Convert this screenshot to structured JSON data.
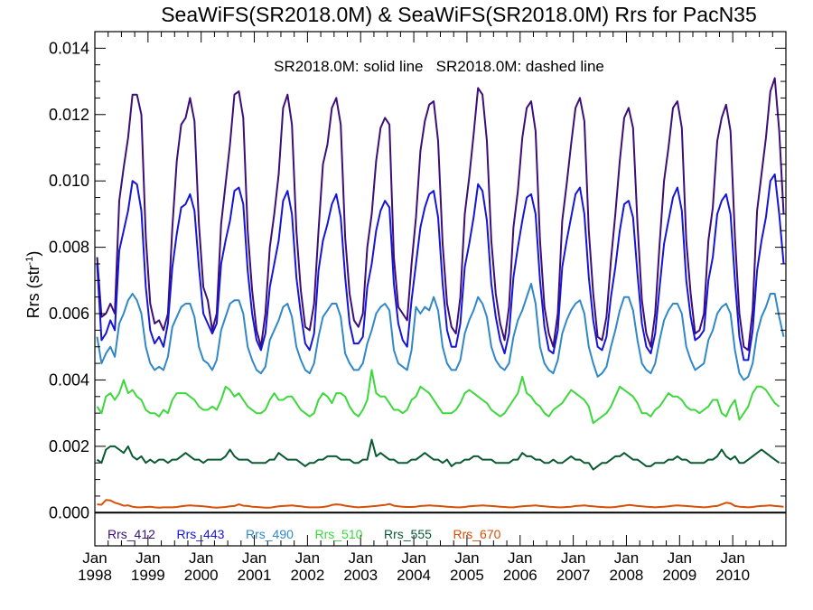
{
  "chart_data": {
    "type": "line",
    "title": "SeaWiFS(SR2018.0M) & SeaWiFS(SR2018.0M)  Rrs for PacN35",
    "annotation": "SR2018.0M: solid line   SR2018.0M: dashed line",
    "ylabel": "Rrs (str",
    "ylabel_sup": "-1",
    "ylabel_end": ")",
    "ylim": [
      -0.001,
      0.0145
    ],
    "xlim": [
      "1998-01",
      "2010-12"
    ],
    "yticks": [
      0.0,
      0.002,
      0.004,
      0.006,
      0.008,
      0.01,
      0.012,
      0.014
    ],
    "ytick_labels": [
      "0.000",
      "0.002",
      "0.004",
      "0.006",
      "0.008",
      "0.010",
      "0.012",
      "0.014"
    ],
    "xtick_month_label": "Jan",
    "xtick_years": [
      "1998",
      "1999",
      "2000",
      "2001",
      "2002",
      "2003",
      "2004",
      "2005",
      "2006",
      "2007",
      "2008",
      "2009",
      "2010"
    ],
    "zero_line": 0.0,
    "legend_position": "bottom-left",
    "series": [
      {
        "name": "Rrs_412",
        "color": "#3c0e78",
        "values": [
          0.0077,
          0.0059,
          0.006,
          0.0063,
          0.006,
          0.0094,
          0.0104,
          0.0113,
          0.0126,
          0.0126,
          0.012,
          0.0083,
          0.0063,
          0.0057,
          0.0058,
          0.0055,
          0.006,
          0.0086,
          0.0106,
          0.0117,
          0.0119,
          0.0125,
          0.0118,
          0.0087,
          0.0068,
          0.0064,
          0.0055,
          0.006,
          0.0087,
          0.0099,
          0.0111,
          0.0126,
          0.0127,
          0.0119,
          0.0085,
          0.0067,
          0.0055,
          0.005,
          0.006,
          0.008,
          0.009,
          0.0102,
          0.0122,
          0.0126,
          0.0117,
          0.0085,
          0.0067,
          0.0056,
          0.0055,
          0.0063,
          0.0085,
          0.0105,
          0.0111,
          0.0122,
          0.0125,
          0.0117,
          0.0083,
          0.0066,
          0.0058,
          0.0056,
          0.006,
          0.008,
          0.009,
          0.0106,
          0.0116,
          0.0119,
          0.0117,
          0.0077,
          0.0062,
          0.006,
          0.0058,
          0.0075,
          0.0089,
          0.0109,
          0.0118,
          0.0123,
          0.0124,
          0.0112,
          0.0081,
          0.0063,
          0.0056,
          0.0054,
          0.0065,
          0.009,
          0.0101,
          0.0114,
          0.0128,
          0.0126,
          0.0112,
          0.0082,
          0.0066,
          0.0057,
          0.0052,
          0.0062,
          0.0086,
          0.0097,
          0.0113,
          0.0122,
          0.0124,
          0.0115,
          0.0082,
          0.0062,
          0.0054,
          0.005,
          0.006,
          0.0088,
          0.0099,
          0.0111,
          0.0122,
          0.0125,
          0.0118,
          0.0085,
          0.0066,
          0.0053,
          0.0052,
          0.0059,
          0.0076,
          0.009,
          0.0106,
          0.0119,
          0.0122,
          0.0116,
          0.0087,
          0.0064,
          0.0054,
          0.005,
          0.006,
          0.0081,
          0.01,
          0.011,
          0.0122,
          0.0124,
          0.0116,
          0.0082,
          0.0066,
          0.0054,
          0.0055,
          0.006,
          0.0082,
          0.0092,
          0.0112,
          0.0119,
          0.0123,
          0.0115,
          0.0083,
          0.006,
          0.005,
          0.0049,
          0.0061,
          0.0091,
          0.0102,
          0.0113,
          0.0127,
          0.0131,
          0.0115,
          0.009
        ]
      },
      {
        "name": "Rrs_443",
        "color": "#1515d9",
        "values": [
          0.0075,
          0.0052,
          0.0054,
          0.0058,
          0.0055,
          0.0079,
          0.0085,
          0.0091,
          0.01,
          0.0099,
          0.0091,
          0.0068,
          0.0055,
          0.0051,
          0.0053,
          0.005,
          0.0057,
          0.0074,
          0.0084,
          0.0092,
          0.0093,
          0.0096,
          0.0091,
          0.0074,
          0.006,
          0.0057,
          0.0054,
          0.0057,
          0.0075,
          0.0082,
          0.0088,
          0.0097,
          0.0098,
          0.0093,
          0.0073,
          0.006,
          0.0052,
          0.0049,
          0.0054,
          0.0068,
          0.0075,
          0.0082,
          0.0094,
          0.0097,
          0.009,
          0.0071,
          0.006,
          0.0051,
          0.0049,
          0.0054,
          0.0073,
          0.0082,
          0.0087,
          0.0093,
          0.0096,
          0.0089,
          0.0071,
          0.0057,
          0.0051,
          0.0051,
          0.0053,
          0.0068,
          0.0075,
          0.0085,
          0.0091,
          0.0094,
          0.0092,
          0.0069,
          0.0057,
          0.0052,
          0.005,
          0.0064,
          0.0075,
          0.0086,
          0.0092,
          0.0096,
          0.0097,
          0.0089,
          0.0069,
          0.0055,
          0.005,
          0.005,
          0.0057,
          0.0074,
          0.0081,
          0.0089,
          0.0099,
          0.0097,
          0.0088,
          0.0069,
          0.0059,
          0.0052,
          0.0048,
          0.0054,
          0.0071,
          0.008,
          0.0088,
          0.0095,
          0.0096,
          0.009,
          0.007,
          0.0056,
          0.0049,
          0.0048,
          0.0055,
          0.0074,
          0.0082,
          0.0089,
          0.0096,
          0.0098,
          0.009,
          0.0071,
          0.0058,
          0.005,
          0.0049,
          0.0053,
          0.0065,
          0.0074,
          0.0085,
          0.0093,
          0.0094,
          0.0089,
          0.0072,
          0.0057,
          0.005,
          0.0048,
          0.0054,
          0.0068,
          0.0081,
          0.0088,
          0.0095,
          0.0098,
          0.0091,
          0.007,
          0.0059,
          0.0052,
          0.0053,
          0.0055,
          0.007,
          0.0077,
          0.009,
          0.0094,
          0.0096,
          0.009,
          0.007,
          0.0053,
          0.0046,
          0.0046,
          0.0055,
          0.0073,
          0.0082,
          0.0089,
          0.01,
          0.0102,
          0.009,
          0.0075
        ]
      },
      {
        "name": "Rrs_490",
        "color": "#3088c8",
        "values": [
          0.0053,
          0.0045,
          0.0048,
          0.005,
          0.0047,
          0.0057,
          0.006,
          0.0064,
          0.0066,
          0.0064,
          0.006,
          0.005,
          0.0045,
          0.0043,
          0.0044,
          0.0043,
          0.0047,
          0.0056,
          0.0059,
          0.0062,
          0.0063,
          0.0063,
          0.0059,
          0.005,
          0.0046,
          0.0045,
          0.0043,
          0.0046,
          0.0055,
          0.0059,
          0.0063,
          0.0064,
          0.0064,
          0.006,
          0.005,
          0.0046,
          0.0043,
          0.0042,
          0.0044,
          0.0052,
          0.0055,
          0.0058,
          0.0062,
          0.0063,
          0.0059,
          0.005,
          0.0046,
          0.0043,
          0.0042,
          0.0045,
          0.0053,
          0.0059,
          0.0061,
          0.0063,
          0.0063,
          0.0059,
          0.0048,
          0.0045,
          0.0043,
          0.0043,
          0.0045,
          0.0051,
          0.0055,
          0.006,
          0.0062,
          0.0063,
          0.0061,
          0.0049,
          0.0045,
          0.0044,
          0.0043,
          0.0049,
          0.0062,
          0.006,
          0.0062,
          0.0061,
          0.0065,
          0.0061,
          0.005,
          0.0045,
          0.0043,
          0.0043,
          0.0046,
          0.0054,
          0.0058,
          0.0061,
          0.0065,
          0.0063,
          0.0059,
          0.005,
          0.0046,
          0.0044,
          0.0043,
          0.0045,
          0.0053,
          0.0058,
          0.0061,
          0.0065,
          0.0069,
          0.0063,
          0.005,
          0.0045,
          0.0043,
          0.0042,
          0.0046,
          0.0054,
          0.0058,
          0.0061,
          0.0063,
          0.0064,
          0.006,
          0.005,
          0.0045,
          0.0041,
          0.0042,
          0.0044,
          0.005,
          0.0055,
          0.0061,
          0.0065,
          0.0065,
          0.0061,
          0.0052,
          0.0045,
          0.0043,
          0.0042,
          0.0045,
          0.0052,
          0.0058,
          0.0061,
          0.0063,
          0.0063,
          0.006,
          0.005,
          0.0046,
          0.0043,
          0.0044,
          0.0045,
          0.0052,
          0.0055,
          0.006,
          0.0062,
          0.0063,
          0.006,
          0.0049,
          0.0042,
          0.004,
          0.0041,
          0.0045,
          0.0054,
          0.0059,
          0.0062,
          0.0066,
          0.0066,
          0.0059,
          0.0053
        ]
      },
      {
        "name": "Rrs_510",
        "color": "#3cd83c",
        "values": [
          0.0032,
          0.003,
          0.0035,
          0.0036,
          0.0034,
          0.0036,
          0.004,
          0.0036,
          0.0037,
          0.0035,
          0.0034,
          0.0031,
          0.003,
          0.003,
          0.0029,
          0.0031,
          0.003,
          0.0034,
          0.0036,
          0.0036,
          0.0036,
          0.0035,
          0.0034,
          0.0032,
          0.0031,
          0.0031,
          0.0032,
          0.0031,
          0.0034,
          0.0038,
          0.0037,
          0.0035,
          0.0036,
          0.0034,
          0.0032,
          0.0031,
          0.003,
          0.003,
          0.0031,
          0.0034,
          0.0036,
          0.0034,
          0.0034,
          0.0035,
          0.0035,
          0.0033,
          0.0031,
          0.003,
          0.0029,
          0.003,
          0.0034,
          0.0036,
          0.0035,
          0.0033,
          0.0036,
          0.0036,
          0.0035,
          0.0032,
          0.003,
          0.0029,
          0.0031,
          0.0034,
          0.0043,
          0.0036,
          0.0035,
          0.0035,
          0.0033,
          0.0031,
          0.0031,
          0.003,
          0.0031,
          0.0034,
          0.0035,
          0.0038,
          0.0037,
          0.0036,
          0.0034,
          0.0032,
          0.003,
          0.003,
          0.003,
          0.0031,
          0.0033,
          0.0036,
          0.0037,
          0.0036,
          0.0035,
          0.0034,
          0.0033,
          0.0031,
          0.003,
          0.0029,
          0.003,
          0.0032,
          0.0034,
          0.0036,
          0.0041,
          0.0036,
          0.0035,
          0.0033,
          0.0032,
          0.003,
          0.0029,
          0.0031,
          0.0032,
          0.0033,
          0.0035,
          0.0037,
          0.0036,
          0.0035,
          0.0034,
          0.0032,
          0.0027,
          0.0028,
          0.0029,
          0.003,
          0.0032,
          0.0035,
          0.0038,
          0.0037,
          0.0036,
          0.0035,
          0.0033,
          0.003,
          0.003,
          0.0029,
          0.0031,
          0.0032,
          0.0034,
          0.0036,
          0.0035,
          0.0035,
          0.0034,
          0.0032,
          0.0031,
          0.0031,
          0.003,
          0.0031,
          0.0032,
          0.0034,
          0.0034,
          0.003,
          0.0029,
          0.0032,
          0.0034,
          0.0028,
          0.003,
          0.0032,
          0.0036,
          0.0038,
          0.0038,
          0.0037,
          0.0035,
          0.0033,
          0.0032
        ]
      },
      {
        "name": "Rrs_555",
        "color": "#0a5a32",
        "values": [
          0.0016,
          0.0015,
          0.0019,
          0.002,
          0.002,
          0.0019,
          0.0018,
          0.002,
          0.0017,
          0.0016,
          0.0017,
          0.0015,
          0.0016,
          0.0015,
          0.0016,
          0.0016,
          0.0015,
          0.0016,
          0.0016,
          0.0017,
          0.0018,
          0.0017,
          0.0016,
          0.0016,
          0.0015,
          0.0016,
          0.0016,
          0.0016,
          0.0016,
          0.0017,
          0.0019,
          0.0017,
          0.0016,
          0.0016,
          0.0016,
          0.0015,
          0.0015,
          0.0015,
          0.0015,
          0.0016,
          0.0016,
          0.0018,
          0.0017,
          0.0016,
          0.0016,
          0.0016,
          0.0015,
          0.0014,
          0.0015,
          0.0015,
          0.0016,
          0.0016,
          0.0017,
          0.0017,
          0.0017,
          0.0016,
          0.0016,
          0.0016,
          0.0015,
          0.0015,
          0.0016,
          0.0016,
          0.0022,
          0.0017,
          0.0018,
          0.0017,
          0.0016,
          0.0016,
          0.0015,
          0.0015,
          0.0015,
          0.0016,
          0.0016,
          0.0017,
          0.0018,
          0.0017,
          0.0016,
          0.0016,
          0.0015,
          0.0016,
          0.0014,
          0.0015,
          0.0015,
          0.0016,
          0.0016,
          0.0017,
          0.0017,
          0.0016,
          0.0016,
          0.0016,
          0.0015,
          0.0015,
          0.0015,
          0.0015,
          0.0016,
          0.0016,
          0.0018,
          0.0017,
          0.0017,
          0.0016,
          0.0016,
          0.0015,
          0.0015,
          0.0016,
          0.0015,
          0.0015,
          0.0016,
          0.0017,
          0.0016,
          0.0016,
          0.0015,
          0.0015,
          0.0013,
          0.0014,
          0.0015,
          0.0015,
          0.0016,
          0.0017,
          0.0017,
          0.0018,
          0.0017,
          0.0016,
          0.0016,
          0.0015,
          0.0014,
          0.0014,
          0.0015,
          0.0015,
          0.0015,
          0.0016,
          0.0016,
          0.0017,
          0.0016,
          0.0016,
          0.0015,
          0.0015,
          0.0015,
          0.0015,
          0.0016,
          0.0016,
          0.0017,
          0.0019,
          0.0017,
          0.0016,
          0.0017,
          0.0015,
          0.0015,
          0.0016,
          0.0017,
          0.0018,
          0.0019,
          0.0018,
          0.0017,
          0.0016,
          0.0015
        ]
      },
      {
        "name": "Rrs_670",
        "color": "#d65008",
        "values": [
          0.00025,
          0.00024,
          0.00038,
          0.00037,
          0.0003,
          0.00026,
          0.00021,
          0.00022,
          0.00018,
          0.00016,
          0.00016,
          0.00017,
          0.00018,
          0.00016,
          0.00015,
          0.00016,
          0.00016,
          0.00016,
          0.00017,
          0.00019,
          0.00021,
          0.00022,
          0.00021,
          0.0002,
          0.00019,
          0.00018,
          0.00016,
          0.00015,
          0.00016,
          0.00017,
          0.00019,
          0.0002,
          0.00025,
          0.00021,
          0.0002,
          0.00018,
          0.00017,
          0.00016,
          0.00015,
          0.00015,
          0.00017,
          0.00019,
          0.0002,
          0.00021,
          0.00022,
          0.0002,
          0.00019,
          0.00017,
          0.00016,
          0.00016,
          0.00016,
          0.00017,
          0.00019,
          0.00023,
          0.00025,
          0.00024,
          0.00021,
          0.00019,
          0.00017,
          0.00016,
          0.00017,
          0.00018,
          0.00019,
          0.0002,
          0.00022,
          0.00023,
          0.00026,
          0.00021,
          0.00019,
          0.00018,
          0.00017,
          0.00017,
          0.00018,
          0.0002,
          0.00021,
          0.00022,
          0.00021,
          0.0002,
          0.00019,
          0.00018,
          0.00017,
          0.00016,
          0.00016,
          0.00017,
          0.00019,
          0.0002,
          0.00021,
          0.00022,
          0.00021,
          0.0002,
          0.00019,
          0.00018,
          0.00017,
          0.00016,
          0.00016,
          0.00018,
          0.00019,
          0.0002,
          0.00021,
          0.00022,
          0.0002,
          0.00019,
          0.00018,
          0.00017,
          0.00016,
          0.00016,
          0.00017,
          0.00018,
          0.0002,
          0.00021,
          0.00022,
          0.0002,
          0.00019,
          0.00018,
          0.00017,
          0.00016,
          0.00016,
          0.00017,
          0.00019,
          0.00021,
          0.00023,
          0.00022,
          0.0002,
          0.00019,
          0.00018,
          0.00017,
          0.00016,
          0.00017,
          0.00018,
          0.00019,
          0.00021,
          0.00022,
          0.00021,
          0.0002,
          0.00019,
          0.00018,
          0.00017,
          0.00016,
          0.00017,
          0.00019,
          0.0002,
          0.00025,
          0.0003,
          0.00028,
          0.0002,
          0.00018,
          0.00017,
          0.00016,
          0.00017,
          0.00019,
          0.0002,
          0.00021,
          0.00022,
          0.0002,
          0.00019,
          0.00018
        ]
      }
    ]
  }
}
